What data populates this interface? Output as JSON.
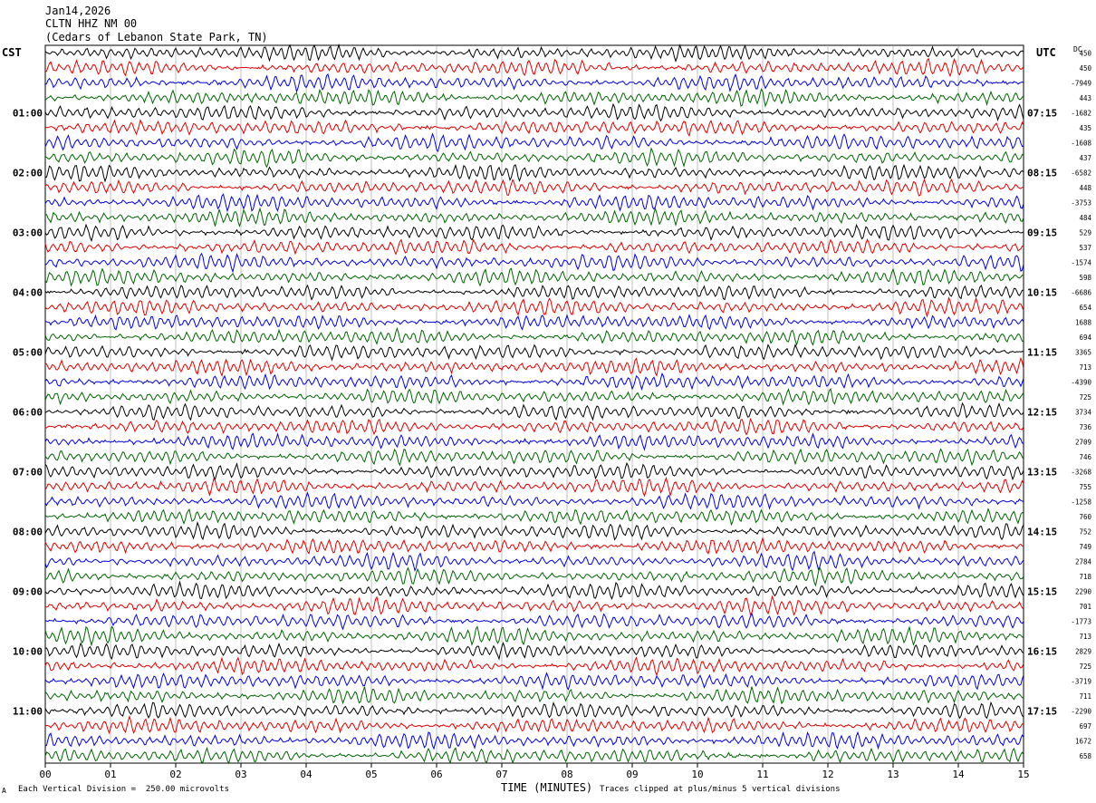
{
  "header": {
    "date": "Jan14,2026",
    "station": "CLTN HHZ NM 00",
    "location": "(Cedars of Lebanon State Park, TN)"
  },
  "left_timezone": "CST",
  "right_timezone": "UTC",
  "dc_label": "DC",
  "footer": {
    "mark": "A",
    "scale_text": "Each Vertical Division =  250.00 microvolts",
    "axis_title": "TIME (MINUTES)",
    "clip_text": "Traces clipped at plus/minus 5 vertical divisions"
  },
  "colors": {
    "trace_cycle": [
      "#000000",
      "#e00000",
      "#0000e0",
      "#006400"
    ],
    "grid": "#999999"
  },
  "chart_data": {
    "type": "line",
    "title": "",
    "xlabel": "TIME (MINUTES)",
    "ylabel": "",
    "x_range": [
      0,
      15
    ],
    "x_ticks": [
      "00",
      "01",
      "02",
      "03",
      "04",
      "05",
      "06",
      "07",
      "08",
      "09",
      "10",
      "11",
      "12",
      "13",
      "14",
      "15"
    ],
    "traces_per_hour": 4,
    "minutes_per_trace": 15,
    "left_hour_labels": [
      "01:00",
      "02:00",
      "03:00",
      "04:00",
      "05:00",
      "06:00",
      "07:00",
      "08:00",
      "09:00",
      "10:00",
      "11:00"
    ],
    "right_hour_labels": [
      "07:15",
      "08:15",
      "09:15",
      "10:15",
      "11:15",
      "12:15",
      "13:15",
      "14:15",
      "15:15",
      "16:15",
      "17:15"
    ],
    "dc_values": [
      "450",
      "450",
      "-7949",
      "443",
      "-1682",
      "435",
      "-1608",
      "437",
      "-6582",
      "448",
      "-3753",
      "484",
      "529",
      "537",
      "-1574",
      "598",
      "-6686",
      "654",
      "1688",
      "694",
      "3365",
      "713",
      "-4390",
      "725",
      "3734",
      "736",
      "2709",
      "746",
      "-3268",
      "755",
      "-1258",
      "760",
      "752",
      "749",
      "2784",
      "718",
      "2290",
      "701",
      "-1773",
      "713",
      "2829",
      "725",
      "-3719",
      "711",
      "-2290",
      "697",
      "1672",
      "658"
    ]
  }
}
